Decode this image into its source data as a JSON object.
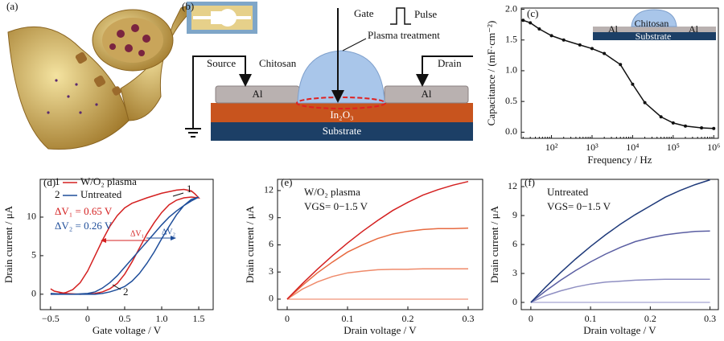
{
  "diagram": {
    "a_label": "(a)",
    "b_label": "(b)",
    "gate": "Gate",
    "pulse": "Pulse",
    "plasma": "Plasma treatment",
    "source": "Source",
    "chitosan": "Chitosan",
    "drain": "Drain",
    "al_left": "Al",
    "al_right": "Al",
    "in2o3": "In₂O₃",
    "substrate": "Substrate"
  },
  "chart_data": [
    {
      "type": "line",
      "panel_label": "(c)",
      "x_label": "Frequency / Hz",
      "y_label": "Capacitance / (mF·cm⁻²)",
      "log_x": true,
      "markers": true,
      "xlim": [
        18,
        1300000
      ],
      "ylim": [
        -0.1,
        2.02
      ],
      "xticks": [
        {
          "value": 100,
          "label": "10²"
        },
        {
          "value": 1000,
          "label": "10³"
        },
        {
          "value": 10000,
          "label": "10⁴"
        },
        {
          "value": 100000,
          "label": "10⁵"
        },
        {
          "value": 1000000,
          "label": "10⁶"
        }
      ],
      "yticks": [
        {
          "value": 0,
          "label": "0.0"
        },
        {
          "value": 0.5,
          "label": "0.5"
        },
        {
          "value": 1,
          "label": "1.0"
        },
        {
          "value": 1.5,
          "label": "1.5"
        },
        {
          "value": 2,
          "label": "2.0"
        }
      ],
      "x": [
        20,
        30,
        50,
        100,
        200,
        500,
        1000,
        2000,
        5000,
        10000,
        20000,
        50000,
        100000,
        200000,
        500000,
        1000000
      ],
      "series": [
        {
          "color": "#111111",
          "values": [
            1.82,
            1.78,
            1.68,
            1.57,
            1.5,
            1.42,
            1.36,
            1.28,
            1.1,
            0.78,
            0.48,
            0.25,
            0.15,
            0.1,
            0.07,
            0.06
          ]
        }
      ],
      "annotations": [
        "Chitosan",
        "Al",
        "Al",
        "Substrate"
      ]
    },
    {
      "type": "line",
      "panel_label": "(d)",
      "x_label": "Gate voltage / V",
      "y_label": "Drain current / μA",
      "xlim": [
        -0.64,
        1.695
      ],
      "ylim": [
        -2,
        14.9
      ],
      "xticks": [
        {
          "value": -0.5,
          "label": "−0.5"
        },
        0,
        0.5,
        {
          "value": 1,
          "label": "1.0"
        },
        1.5
      ],
      "yticks": [
        0,
        5,
        10
      ],
      "legend_numbers": [
        "1",
        "2"
      ],
      "series": [
        {
          "name": "W/O₂ plasma",
          "color": "#d42020",
          "x": [
            -0.5,
            -0.45,
            -0.3,
            -0.1,
            0.1,
            0.2,
            0.3,
            0.4,
            0.5,
            0.6,
            0.7,
            0.8,
            0.9,
            1.0,
            1.1,
            1.2,
            1.3,
            1.4,
            1.5,
            1.45,
            1.4,
            1.3,
            1.2,
            1.0,
            0.8,
            0.6,
            0.5,
            0.4,
            0.3,
            0.2,
            0.1,
            0.0,
            -0.1,
            -0.2,
            -0.3,
            -0.4,
            -0.5
          ],
          "values": [
            0.7,
            0.4,
            0.1,
            0.0,
            0.1,
            0.3,
            0.7,
            1.4,
            2.6,
            4.2,
            6.0,
            7.8,
            9.3,
            10.6,
            11.6,
            12.2,
            12.5,
            12.6,
            12.5,
            13.0,
            13.4,
            13.6,
            13.5,
            13.1,
            12.5,
            11.8,
            11.2,
            10.2,
            8.8,
            7.0,
            5.0,
            3.0,
            1.5,
            0.6,
            0.2,
            0.05,
            0.0
          ]
        },
        {
          "name": "Untreated",
          "color": "#1f4e9a",
          "x": [
            -0.5,
            -0.3,
            -0.1,
            0.1,
            0.2,
            0.3,
            0.4,
            0.5,
            0.6,
            0.7,
            0.8,
            0.9,
            1.0,
            1.1,
            1.2,
            1.3,
            1.4,
            1.5,
            1.4,
            1.3,
            1.2,
            1.1,
            1.0,
            0.9,
            0.8,
            0.7,
            0.6,
            0.5,
            0.4,
            0.3,
            0.2,
            0.1,
            0.0,
            -0.2,
            -0.5
          ],
          "values": [
            0.1,
            0.0,
            0.0,
            0.0,
            0.1,
            0.3,
            0.6,
            1.0,
            1.7,
            2.7,
            4.0,
            5.5,
            7.2,
            8.8,
            10.3,
            11.5,
            12.3,
            12.6,
            12.1,
            11.5,
            10.8,
            10.0,
            9.0,
            7.9,
            6.8,
            5.7,
            4.6,
            3.5,
            2.4,
            1.5,
            0.8,
            0.3,
            0.1,
            0.0,
            0.0
          ]
        }
      ],
      "annotations": [
        "1",
        "2",
        "ΔV₁ = 0.65 V",
        "ΔV₂ = 0.26 V",
        "ΔV₁",
        "ΔV₂"
      ]
    },
    {
      "type": "line",
      "panel_label": "(e)",
      "x_label": "Drain voltage / V",
      "y_label": "Drain current / μA",
      "xlim": [
        -0.016,
        0.324
      ],
      "ylim": [
        -1.16,
        13.24
      ],
      "xticks": [
        0,
        0.1,
        0.2,
        0.3
      ],
      "yticks": [
        0,
        3,
        6,
        9,
        12
      ],
      "x": [
        0,
        0.025,
        0.05,
        0.075,
        0.1,
        0.125,
        0.15,
        0.175,
        0.2,
        0.225,
        0.25,
        0.275,
        0.3
      ],
      "series": [
        {
          "color": "#f3a58f",
          "values": [
            0,
            0,
            0,
            0,
            0,
            0,
            0,
            0,
            0,
            0,
            0,
            0,
            0
          ]
        },
        {
          "color": "#ef8a6a",
          "values": [
            0,
            1.1,
            1.9,
            2.5,
            2.9,
            3.1,
            3.25,
            3.3,
            3.3,
            3.35,
            3.35,
            3.35,
            3.35
          ]
        },
        {
          "color": "#e76a40",
          "values": [
            0,
            1.5,
            2.9,
            4.1,
            5.2,
            6.0,
            6.7,
            7.2,
            7.5,
            7.7,
            7.8,
            7.8,
            7.85
          ]
        },
        {
          "color": "#d42020",
          "values": [
            0,
            1.7,
            3.3,
            4.8,
            6.2,
            7.5,
            8.7,
            9.8,
            10.7,
            11.5,
            12.1,
            12.6,
            13.0
          ]
        }
      ],
      "annotations": [
        "W/O₂ plasma",
        "VGS= 0−1.5 V"
      ]
    },
    {
      "type": "line",
      "panel_label": "(f)",
      "x_label": "Drain voltage / V",
      "y_label": "Drain current / μA",
      "xlim": [
        -0.016,
        0.314
      ],
      "ylim": [
        -0.75,
        12.75
      ],
      "xticks": [
        0,
        0.1,
        0.2,
        0.3
      ],
      "yticks": [
        0,
        3,
        6,
        9,
        12
      ],
      "x": [
        0,
        0.025,
        0.05,
        0.075,
        0.1,
        0.125,
        0.15,
        0.175,
        0.2,
        0.225,
        0.25,
        0.275,
        0.3
      ],
      "series": [
        {
          "color": "#b4b4da",
          "values": [
            0,
            0,
            0,
            0,
            0,
            0,
            0,
            0,
            0,
            0,
            0,
            0,
            0
          ]
        },
        {
          "color": "#8f8fc2",
          "values": [
            0,
            0.7,
            1.2,
            1.6,
            1.9,
            2.1,
            2.2,
            2.3,
            2.35,
            2.4,
            2.4,
            2.4,
            2.4
          ]
        },
        {
          "color": "#5a5ea2",
          "values": [
            0,
            1.2,
            2.3,
            3.3,
            4.2,
            5.0,
            5.7,
            6.3,
            6.7,
            7.0,
            7.2,
            7.35,
            7.4
          ]
        },
        {
          "color": "#1f3a7a",
          "values": [
            0,
            1.6,
            3.1,
            4.5,
            5.8,
            7.0,
            8.1,
            9.1,
            10.0,
            10.9,
            11.6,
            12.2,
            12.7
          ]
        }
      ],
      "annotations": [
        "Untreated",
        "VGS= 0−1.5 V"
      ]
    }
  ]
}
